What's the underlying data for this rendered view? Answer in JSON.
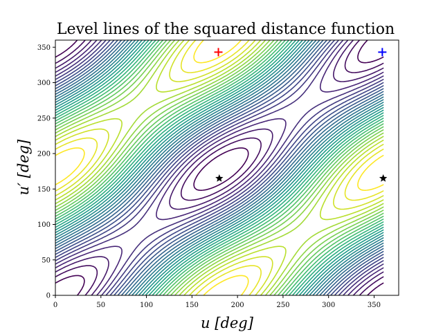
{
  "chart_data": {
    "type": "contour",
    "title": "Level lines of the squared distance function",
    "xlabel": "u [deg]",
    "ylabel": "u′ [deg]",
    "xlim": [
      0,
      377
    ],
    "ylim": [
      0,
      360
    ],
    "xticks": [
      "0",
      "50",
      "100",
      "150",
      "200",
      "250",
      "300",
      "350"
    ],
    "yticks": [
      "0",
      "50",
      "100",
      "150",
      "200",
      "250",
      "300",
      "350"
    ],
    "grid": false,
    "colormap": "viridis",
    "contour_levels": 30,
    "markers": [
      {
        "kind": "plus",
        "x": 179,
        "y": 343,
        "color": "#ff0000"
      },
      {
        "kind": "plus",
        "x": 359,
        "y": 343,
        "color": "#0000ff"
      },
      {
        "kind": "star",
        "x": 180,
        "y": 165,
        "color": "#000000"
      },
      {
        "kind": "star",
        "x": 360,
        "y": 165,
        "color": "#000000"
      }
    ]
  }
}
